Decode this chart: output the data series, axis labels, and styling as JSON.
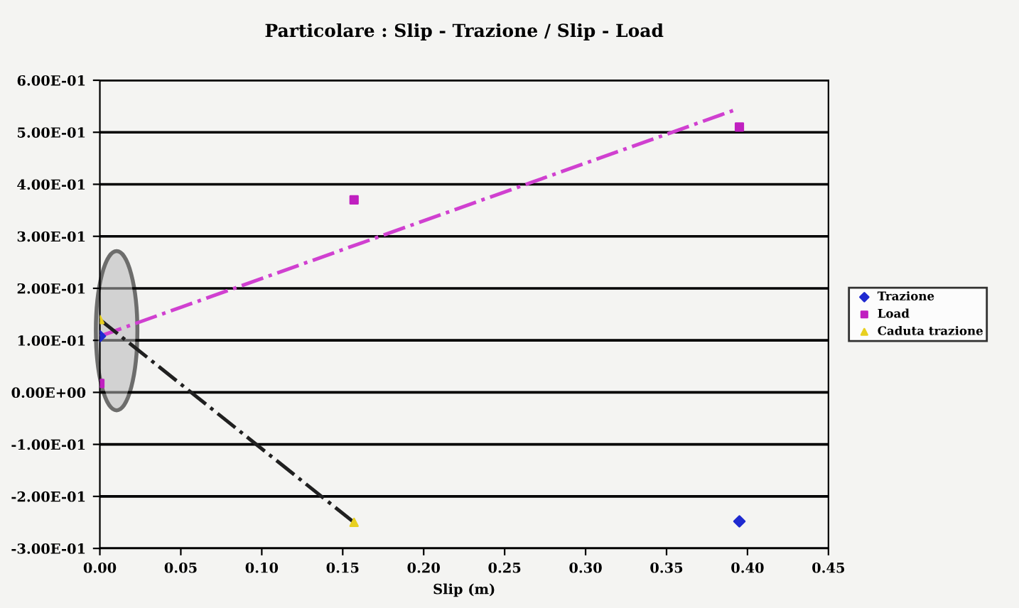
{
  "chart_data": {
    "type": "scatter",
    "title": "Particolare : Slip - Trazione / Slip - Load",
    "xlabel": "Slip (m)",
    "series": [
      {
        "name": "Trazione",
        "color": "#1f2ad0",
        "marker": "diamond",
        "x": [
          0.0,
          0.395
        ],
        "values": [
          0.108,
          -0.248
        ]
      },
      {
        "name": "Load",
        "color": "#c020c0",
        "marker": "square",
        "x": [
          0.0,
          0.157,
          0.395
        ],
        "values": [
          0.017,
          0.37,
          0.51
        ]
      },
      {
        "name": "Caduta trazione",
        "color": "#e8d020",
        "marker": "triangle",
        "x": [
          0.0,
          0.157
        ],
        "values": [
          0.14,
          -0.25
        ]
      },
      {
        "type": "line",
        "color": "#d040d0",
        "line_style": "dashdot",
        "marker": "none",
        "x": [
          0.0,
          0.394
        ],
        "values": [
          0.108,
          0.545
        ]
      },
      {
        "type": "line",
        "color": "#202020",
        "line_style": "dashdot",
        "marker": "none",
        "x": [
          0.0,
          0.157
        ],
        "values": [
          0.14,
          -0.25
        ]
      }
    ],
    "xlim": [
      0,
      0.45
    ],
    "xticks": [
      {
        "value": 0,
        "label": "0.00"
      },
      {
        "value": 0.05,
        "label": "0.05"
      },
      {
        "value": 0.1,
        "label": "0.10"
      },
      {
        "value": 0.15,
        "label": "0.15"
      },
      {
        "value": 0.2,
        "label": "0.20"
      },
      {
        "value": 0.25,
        "label": "0.25"
      },
      {
        "value": 0.3,
        "label": "0.30"
      },
      {
        "value": 0.35,
        "label": "0.35"
      },
      {
        "value": 0.4,
        "label": "0.40"
      },
      {
        "value": 0.45,
        "label": "0.45"
      }
    ],
    "ylim": [
      -0.3,
      0.6
    ],
    "yticks": [
      {
        "value": -0.3,
        "label": "-3.00E-01"
      },
      {
        "value": -0.2,
        "label": "-2.00E-01"
      },
      {
        "value": -0.1,
        "label": "-1.00E-01"
      },
      {
        "value": 0,
        "label": "0.00E+00"
      },
      {
        "value": 0.1,
        "label": "1.00E-01"
      },
      {
        "value": 0.2,
        "label": "2.00E-01"
      },
      {
        "value": 0.3,
        "label": "3.00E-01"
      },
      {
        "value": 0.4,
        "label": "4.00E-01"
      },
      {
        "value": 0.5,
        "label": "5.00E-01"
      },
      {
        "value": 0.6,
        "label": "6.00E-01"
      }
    ],
    "grid": "y",
    "legend": "right"
  }
}
